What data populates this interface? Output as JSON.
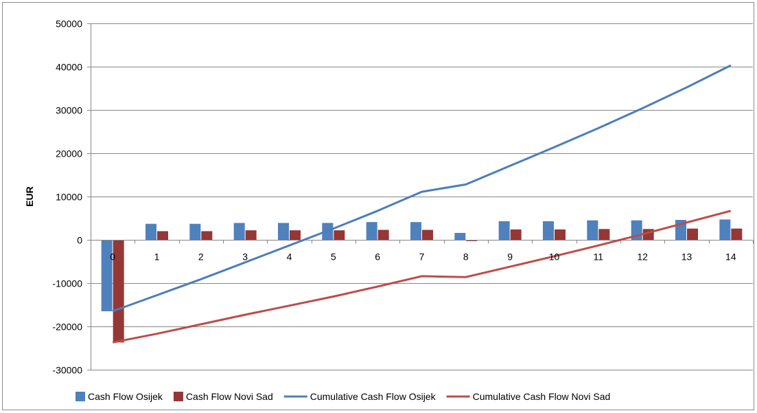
{
  "chart_data": {
    "type": "bar",
    "title": "",
    "xlabel": "",
    "ylabel": "EUR",
    "ylim": [
      -30000,
      50000
    ],
    "yticks": [
      50000,
      40000,
      30000,
      20000,
      10000,
      0,
      -10000,
      -20000,
      -30000
    ],
    "categories": [
      "0",
      "1",
      "2",
      "3",
      "4",
      "5",
      "6",
      "7",
      "8",
      "9",
      "10",
      "11",
      "12",
      "13",
      "14"
    ],
    "grid": true,
    "legend_position": "bottom",
    "colors": {
      "cash_flow_osijek": "#4f81bd",
      "cash_flow_novi_sad": "#953735",
      "cumulative_osijek": "#4a7ebb",
      "cumulative_novi_sad": "#be4b48"
    },
    "series": [
      {
        "name": "Cash Flow Osijek",
        "kind": "bar",
        "values": [
          -16500,
          3700,
          3700,
          3900,
          3900,
          3900,
          4100,
          4100,
          1600,
          4300,
          4300,
          4500,
          4500,
          4600,
          4700
        ]
      },
      {
        "name": "Cash Flow Novi Sad",
        "kind": "bar",
        "values": [
          -23700,
          2000,
          2000,
          2200,
          2200,
          2200,
          2300,
          2300,
          -300,
          2400,
          2400,
          2500,
          2500,
          2600,
          2600
        ]
      },
      {
        "name": "Cumulative Cash Flow Osijek",
        "kind": "line",
        "values": [
          -16500,
          -12800,
          -9100,
          -5200,
          -1300,
          2600,
          6700,
          11100,
          12800,
          17100,
          21400,
          25800,
          30400,
          35200,
          40300
        ]
      },
      {
        "name": "Cumulative Cash Flow Novi Sad",
        "kind": "line",
        "values": [
          -23700,
          -21700,
          -19500,
          -17300,
          -15200,
          -13100,
          -10800,
          -8400,
          -8600,
          -6200,
          -3800,
          -1300,
          1300,
          4000,
          6700
        ]
      }
    ]
  }
}
